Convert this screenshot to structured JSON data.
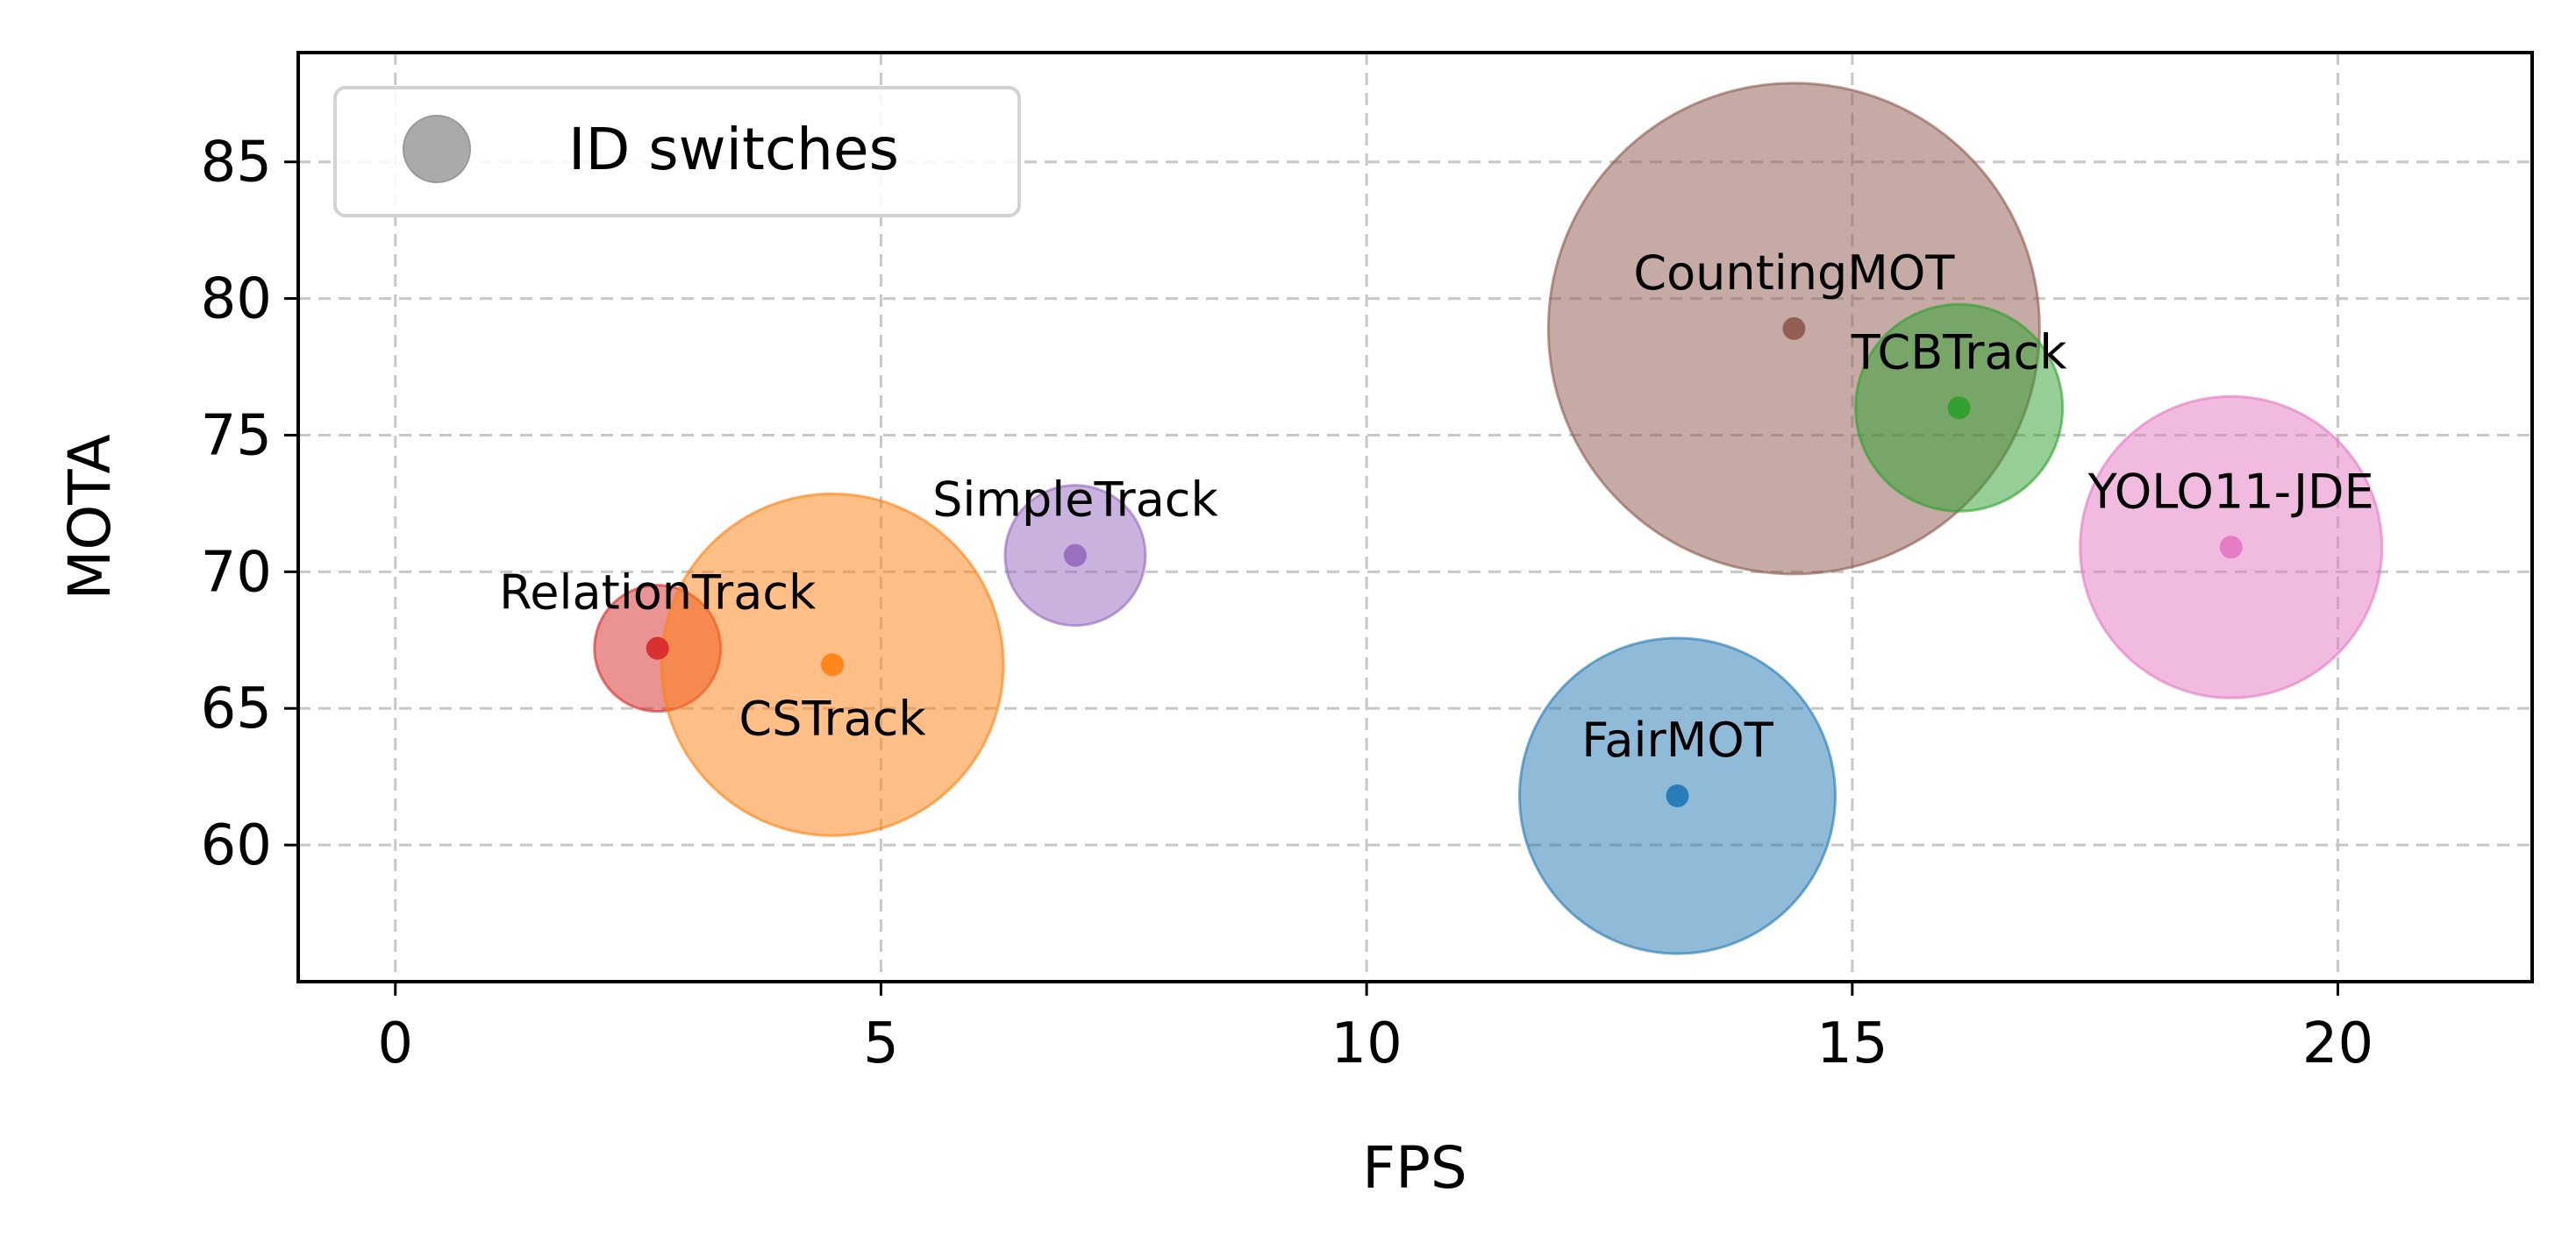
{
  "chart_data": {
    "type": "scatter",
    "xlabel": "FPS",
    "ylabel": "MOTA",
    "xlim": [
      -1,
      22
    ],
    "ylim": [
      55,
      89
    ],
    "xticks": [
      0,
      5,
      10,
      15,
      20
    ],
    "yticks": [
      60,
      65,
      70,
      75,
      80,
      85
    ],
    "grid": true,
    "legend": {
      "position": "top-left",
      "label": "ID switches",
      "color": "#aaaaaa"
    },
    "points": [
      {
        "name": "RelationTrack",
        "fps": 2.7,
        "mota": 67.2,
        "color": "#d62728",
        "label_position": "above"
      },
      {
        "name": "CSTrack",
        "fps": 4.5,
        "mota": 66.6,
        "color": "#ff7f0e",
        "label_position": "below"
      },
      {
        "name": "SimpleTrack",
        "fps": 7.0,
        "mota": 70.6,
        "color": "#9467bd",
        "label_position": "above"
      },
      {
        "name": "FairMOT",
        "fps": 13.2,
        "mota": 61.8,
        "color": "#1f77b4",
        "label_position": "above"
      },
      {
        "name": "CountingMOT",
        "fps": 14.4,
        "mota": 78.9,
        "color": "#8c564b",
        "label_position": "above"
      },
      {
        "name": "TCBTrack",
        "fps": 16.1,
        "mota": 76.0,
        "color": "#2ca02c",
        "label_position": "above"
      },
      {
        "name": "YOLO11-JDE",
        "fps": 18.9,
        "mota": 70.9,
        "color": "#e377c2",
        "label_position": "above"
      }
    ]
  }
}
